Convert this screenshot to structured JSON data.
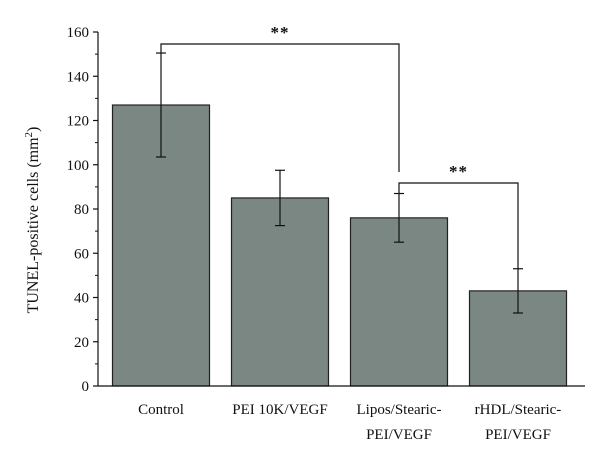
{
  "chart_data": {
    "type": "bar",
    "categories": [
      [
        "Control"
      ],
      [
        "PEI 10K/VEGF"
      ],
      [
        "Lipos/Stearic-",
        "PEI/VEGF"
      ],
      [
        "rHDL/Stearic-",
        "PEI/VEGF"
      ]
    ],
    "values": [
      127,
      85,
      76,
      43
    ],
    "errors": [
      23.5,
      12.5,
      11,
      10
    ],
    "ylabel": "TUNEL-positive cells (mm",
    "ylabel_superscript": "2",
    "ylabel_suffix": ")",
    "ylim": [
      0,
      160
    ],
    "yticks": [
      0,
      20,
      40,
      60,
      80,
      100,
      120,
      140,
      160
    ],
    "significance": [
      {
        "from": 0,
        "to": 2,
        "label": "**"
      },
      {
        "from": 2,
        "to": 3,
        "label": "**"
      }
    ],
    "grid": false,
    "legend": "none"
  },
  "colors": {
    "bar_fill": "#7a8782",
    "bar_stroke": "#222222",
    "axis": "#111111"
  }
}
